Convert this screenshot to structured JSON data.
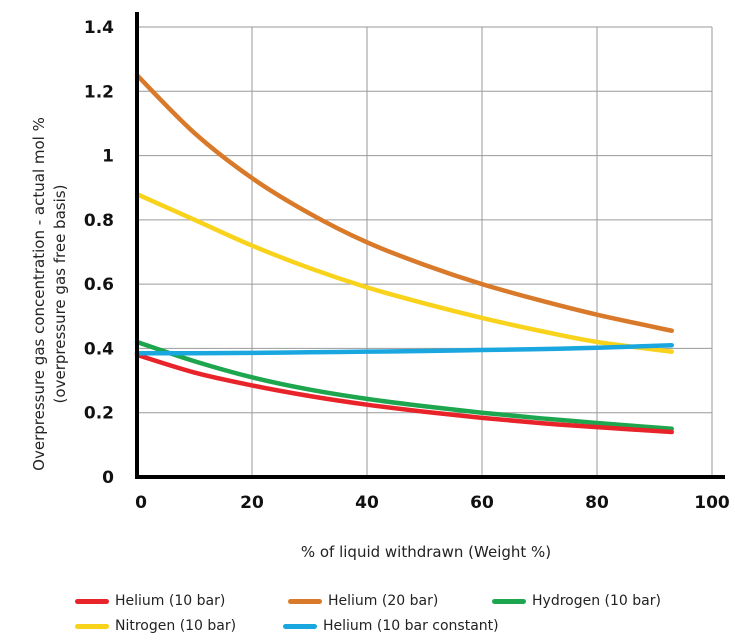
{
  "chart_data": {
    "type": "line",
    "title": "",
    "xlabel": "% of liquid withdrawn (Weight %)",
    "ylabel": [
      "Overpressure gas concentration - actual mol %",
      "(overpressure gas free basis)"
    ],
    "xlim": [
      0,
      100
    ],
    "ylim": [
      0,
      1.4
    ],
    "xticks": [
      0,
      20,
      40,
      60,
      80,
      100
    ],
    "yticks": [
      0,
      0.2,
      0.4,
      0.6,
      0.8,
      1,
      1.2,
      1.4
    ],
    "xtick_labels": [
      "0",
      "20",
      "40",
      "60",
      "80",
      "100"
    ],
    "ytick_labels": [
      "0",
      "0.2",
      "0.4",
      "0.6",
      "0.8",
      "1",
      "1.2",
      "1.4"
    ],
    "grid": true,
    "legend_position": "bottom",
    "series": [
      {
        "name": "Helium (10 bar)",
        "color": "#e8232a",
        "x": [
          0,
          10,
          20,
          30,
          40,
          50,
          60,
          70,
          80,
          93
        ],
        "y": [
          0.38,
          0.325,
          0.285,
          0.252,
          0.225,
          0.203,
          0.184,
          0.168,
          0.155,
          0.14
        ]
      },
      {
        "name": "Helium (20 bar)",
        "color": "#d9792a",
        "x": [
          0,
          10,
          20,
          30,
          40,
          50,
          60,
          70,
          80,
          93
        ],
        "y": [
          1.25,
          1.07,
          0.93,
          0.82,
          0.73,
          0.66,
          0.6,
          0.55,
          0.505,
          0.455
        ]
      },
      {
        "name": "Hydrogen (10 bar)",
        "color": "#1ea64f",
        "x": [
          0,
          10,
          20,
          30,
          40,
          50,
          60,
          70,
          80,
          93
        ],
        "y": [
          0.42,
          0.36,
          0.31,
          0.272,
          0.243,
          0.22,
          0.2,
          0.183,
          0.168,
          0.15
        ]
      },
      {
        "name": "Nitrogen (10 bar)",
        "color": "#f9d21b",
        "x": [
          0,
          10,
          20,
          30,
          40,
          50,
          60,
          70,
          80,
          93
        ],
        "y": [
          0.88,
          0.8,
          0.72,
          0.65,
          0.59,
          0.54,
          0.495,
          0.455,
          0.42,
          0.39
        ]
      },
      {
        "name": "Helium (10 bar constant)",
        "color": "#1aa7e0",
        "x": [
          0,
          10,
          20,
          30,
          40,
          50,
          60,
          70,
          80,
          93
        ],
        "y": [
          0.385,
          0.385,
          0.386,
          0.388,
          0.39,
          0.392,
          0.395,
          0.398,
          0.402,
          0.41
        ]
      }
    ]
  }
}
